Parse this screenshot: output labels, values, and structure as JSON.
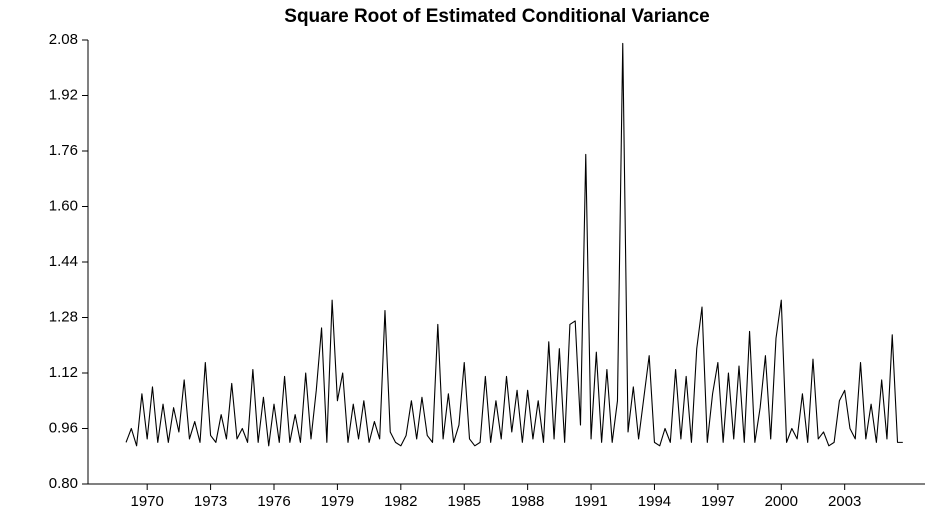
{
  "chart_data": {
    "type": "line",
    "title": "Square Root of Estimated Conditional Variance",
    "x": [
      1969,
      1969.25,
      1969.5,
      1969.75,
      1970,
      1970.25,
      1970.5,
      1970.75,
      1971,
      1971.25,
      1971.5,
      1971.75,
      1972,
      1972.25,
      1972.5,
      1972.75,
      1973,
      1973.25,
      1973.5,
      1973.75,
      1974,
      1974.25,
      1974.5,
      1974.75,
      1975,
      1975.25,
      1975.5,
      1975.75,
      1976,
      1976.25,
      1976.5,
      1976.75,
      1977,
      1977.25,
      1977.5,
      1977.75,
      1978,
      1978.25,
      1978.5,
      1978.75,
      1979,
      1979.25,
      1979.5,
      1979.75,
      1980,
      1980.25,
      1980.5,
      1980.75,
      1981,
      1981.25,
      1981.5,
      1981.75,
      1982,
      1982.25,
      1982.5,
      1982.75,
      1983,
      1983.25,
      1983.5,
      1983.75,
      1984,
      1984.25,
      1984.5,
      1984.75,
      1985,
      1985.25,
      1985.5,
      1985.75,
      1986,
      1986.25,
      1986.5,
      1986.75,
      1987,
      1987.25,
      1987.5,
      1987.75,
      1988,
      1988.25,
      1988.5,
      1988.75,
      1989,
      1989.25,
      1989.5,
      1989.75,
      1990,
      1990.25,
      1990.5,
      1990.75,
      1991,
      1991.25,
      1991.5,
      1991.75,
      1992,
      1992.25,
      1992.5,
      1992.75,
      1993,
      1993.25,
      1993.5,
      1993.75,
      1994,
      1994.25,
      1994.5,
      1994.75,
      1995,
      1995.25,
      1995.5,
      1995.75,
      1996,
      1996.25,
      1996.5,
      1996.75,
      1997,
      1997.25,
      1997.5,
      1997.75,
      1998,
      1998.25,
      1998.5,
      1998.75,
      1999,
      1999.25,
      1999.5,
      1999.75,
      2000,
      2000.25,
      2000.5,
      2000.75,
      2001,
      2001.25,
      2001.5,
      2001.75,
      2002,
      2002.25,
      2002.5,
      2002.75,
      2003,
      2003.25,
      2003.5,
      2003.75,
      2004,
      2004.25,
      2004.5,
      2004.75,
      2005,
      2005.25,
      2005.5,
      2005.75
    ],
    "series": [
      {
        "color": "#000000",
        "values": [
          0.92,
          0.96,
          0.91,
          1.06,
          0.93,
          1.08,
          0.92,
          1.03,
          0.92,
          1.02,
          0.95,
          1.1,
          0.93,
          0.98,
          0.92,
          1.15,
          0.94,
          0.92,
          1.0,
          0.93,
          1.09,
          0.93,
          0.96,
          0.92,
          1.13,
          0.92,
          1.05,
          0.91,
          1.03,
          0.92,
          1.11,
          0.92,
          1.0,
          0.92,
          1.12,
          0.93,
          1.07,
          1.25,
          0.92,
          1.33,
          1.04,
          1.12,
          0.92,
          1.03,
          0.93,
          1.04,
          0.92,
          0.98,
          0.93,
          1.3,
          0.95,
          0.92,
          0.91,
          0.94,
          1.04,
          0.93,
          1.05,
          0.94,
          0.92,
          1.26,
          0.93,
          1.06,
          0.92,
          0.97,
          1.15,
          0.93,
          0.91,
          0.92,
          1.11,
          0.92,
          1.04,
          0.93,
          1.11,
          0.95,
          1.07,
          0.92,
          1.07,
          0.93,
          1.04,
          0.92,
          1.21,
          0.93,
          1.19,
          0.92,
          1.26,
          1.27,
          0.97,
          1.75,
          0.93,
          1.18,
          0.92,
          1.13,
          0.92,
          1.04,
          2.07,
          0.95,
          1.08,
          0.93,
          1.05,
          1.17,
          0.92,
          0.91,
          0.96,
          0.92,
          1.13,
          0.93,
          1.11,
          0.92,
          1.19,
          1.31,
          0.92,
          1.06,
          1.15,
          0.92,
          1.12,
          0.93,
          1.14,
          0.92,
          1.24,
          0.92,
          1.02,
          1.17,
          0.93,
          1.22,
          1.33,
          0.92,
          0.96,
          0.93,
          1.06,
          0.92,
          1.16,
          0.93,
          0.95,
          0.91,
          0.92,
          1.04,
          1.07,
          0.96,
          0.93,
          1.15,
          0.93,
          1.03,
          0.92,
          1.1,
          0.93,
          1.23,
          0.92,
          0.92
        ]
      }
    ],
    "xlim": [
      1967.2,
      2006.8
    ],
    "xticks": [
      1970,
      1973,
      1976,
      1979,
      1982,
      1985,
      1988,
      1991,
      1994,
      1997,
      2000,
      2003
    ],
    "ylim": [
      0.8,
      2.08
    ],
    "yticks": [
      {
        "value": 0.8,
        "label": "0.80"
      },
      0.96,
      1.12,
      1.28,
      1.44,
      {
        "value": 1.6,
        "label": "1.60"
      },
      1.76,
      1.92,
      2.08
    ]
  }
}
